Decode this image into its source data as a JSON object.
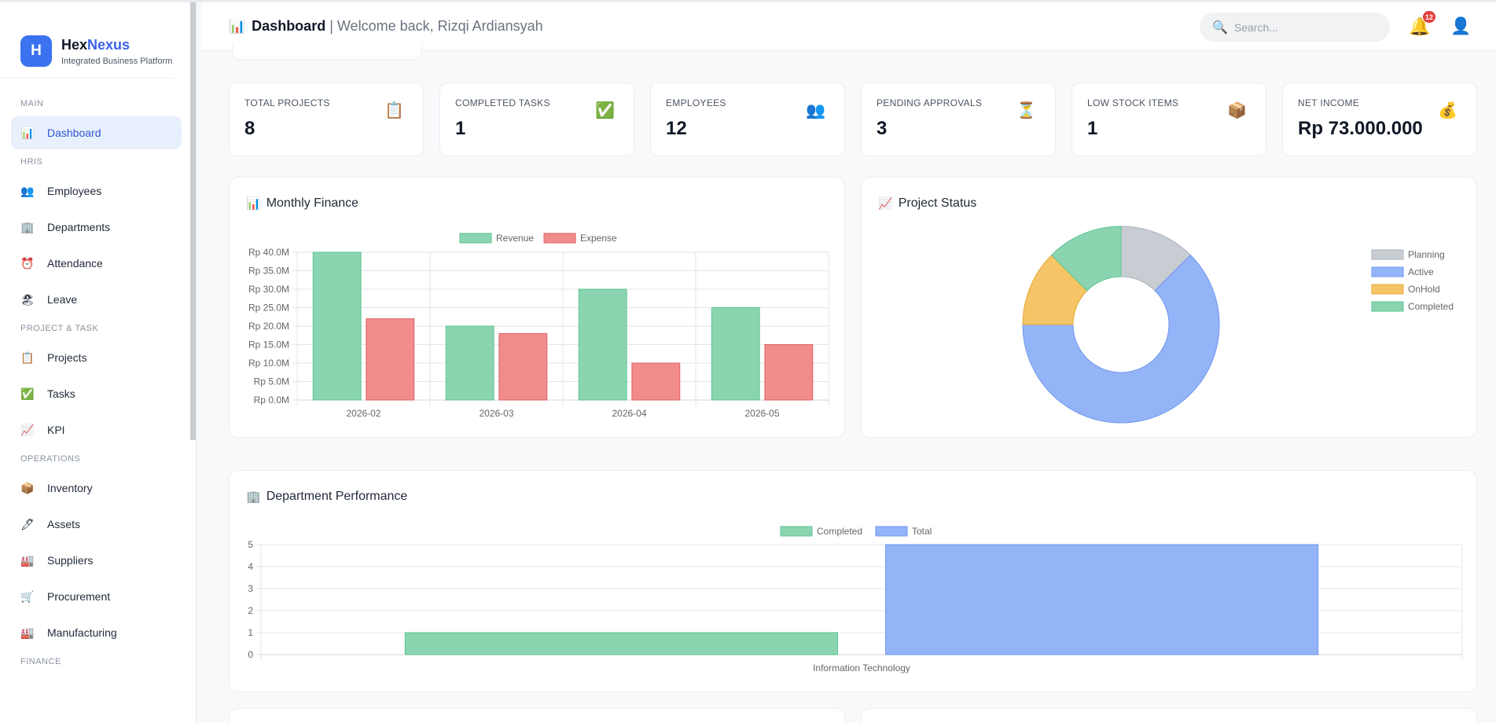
{
  "brand": {
    "logo_letter": "H",
    "name_part1": "Hex",
    "name_part2": "Nexus",
    "subtitle": "Integrated Business Platform"
  },
  "sidebar": {
    "sections": [
      {
        "label": "MAIN",
        "items": [
          {
            "label": "Dashboard",
            "icon": "chart-icon",
            "glyph": "📊",
            "active": true
          }
        ]
      },
      {
        "label": "HRIS",
        "items": [
          {
            "label": "Employees",
            "icon": "people-icon",
            "glyph": "👥"
          },
          {
            "label": "Departments",
            "icon": "building-icon",
            "glyph": "🏢"
          },
          {
            "label": "Attendance",
            "icon": "alarm-clock-icon",
            "glyph": "⏰"
          },
          {
            "label": "Leave",
            "icon": "beach-icon",
            "glyph": "🏖"
          }
        ]
      },
      {
        "label": "PROJECT & TASK",
        "items": [
          {
            "label": "Projects",
            "icon": "clipboard-icon",
            "glyph": "📋"
          },
          {
            "label": "Tasks",
            "icon": "check-icon",
            "glyph": "✅"
          },
          {
            "label": "KPI",
            "icon": "trend-icon",
            "glyph": "📈"
          }
        ]
      },
      {
        "label": "OPERATIONS",
        "items": [
          {
            "label": "Inventory",
            "icon": "box-icon",
            "glyph": "📦"
          },
          {
            "label": "Assets",
            "icon": "pen-icon",
            "glyph": "🖊"
          },
          {
            "label": "Suppliers",
            "icon": "factory-icon",
            "glyph": "🏭"
          },
          {
            "label": "Procurement",
            "icon": "cart-icon",
            "glyph": "🛒"
          },
          {
            "label": "Manufacturing",
            "icon": "factory-icon",
            "glyph": "🏭"
          }
        ]
      },
      {
        "label": "FINANCE",
        "items": []
      }
    ]
  },
  "header": {
    "title": "Dashboard",
    "separator": "|",
    "welcome": "Welcome back, Rizqi Ardiansyah",
    "search_placeholder": "Search...",
    "notification_count": "12"
  },
  "stats": [
    {
      "label": "TOTAL PROJECTS",
      "value": "8",
      "icon": "clipboard-icon",
      "glyph": "📋"
    },
    {
      "label": "COMPLETED TASKS",
      "value": "1",
      "icon": "check-icon",
      "glyph": "✅"
    },
    {
      "label": "EMPLOYEES",
      "value": "12",
      "icon": "people-icon",
      "glyph": "👥"
    },
    {
      "label": "PENDING APPROVALS",
      "value": "3",
      "icon": "hourglass-icon",
      "glyph": "⏳"
    },
    {
      "label": "LOW STOCK ITEMS",
      "value": "1",
      "icon": "box-icon",
      "glyph": "📦"
    },
    {
      "label": "NET INCOME",
      "value": "Rp 73.000.000",
      "icon": "money-bag-icon",
      "glyph": "💰"
    }
  ],
  "panels": {
    "finance_title": "Monthly Finance",
    "status_title": "Project Status",
    "dept_title": "Department Performance"
  },
  "chart_data": [
    {
      "type": "bar",
      "title": "Monthly Finance",
      "categories": [
        "2026-02",
        "2026-03",
        "2026-04",
        "2026-05"
      ],
      "series": [
        {
          "name": "Revenue",
          "values": [
            40000000,
            20000000,
            30000000,
            25000000
          ],
          "color": "#8ad5b0",
          "border": "#5cc394"
        },
        {
          "name": "Expense",
          "values": [
            22000000,
            18000000,
            10000000,
            15000000
          ],
          "color": "#f08c8c",
          "border": "#e06060"
        }
      ],
      "ylim": [
        0,
        40000000
      ],
      "yticks": [
        "Rp 0.0M",
        "Rp 5.0M",
        "Rp 10.0M",
        "Rp 15.0M",
        "Rp 20.0M",
        "Rp 25.0M",
        "Rp 30.0M",
        "Rp 35.0M",
        "Rp 40.0M"
      ],
      "legend": "top",
      "grid": true
    },
    {
      "type": "pie",
      "subtype": "doughnut",
      "title": "Project Status",
      "labels": [
        "Planning",
        "Active",
        "OnHold",
        "Completed"
      ],
      "values": [
        1,
        5,
        1,
        1
      ],
      "colors": [
        "#c8ccd3",
        "#94b4f8",
        "#f5c466",
        "#8ad5b0"
      ],
      "borders": [
        "#aeb3bb",
        "#6f96ef",
        "#e7ab3a",
        "#5cc394"
      ],
      "legend": "right"
    },
    {
      "type": "bar",
      "title": "Department Performance",
      "categories": [
        "Information Technology"
      ],
      "series": [
        {
          "name": "Completed",
          "values": [
            1
          ],
          "color": "#8ad5b0",
          "border": "#5cc394"
        },
        {
          "name": "Total",
          "values": [
            5
          ],
          "color": "#94b4f8",
          "border": "#6f96ef"
        }
      ],
      "ylim": [
        0,
        5
      ],
      "yticks": [
        "0",
        "1",
        "2",
        "3",
        "4",
        "5"
      ],
      "legend": "top",
      "grid": true
    }
  ]
}
